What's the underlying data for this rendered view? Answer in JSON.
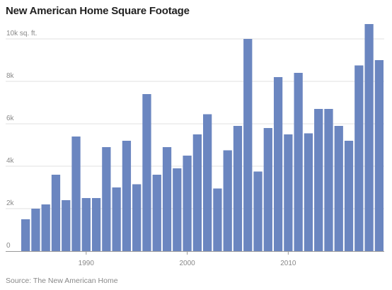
{
  "chart_data": {
    "type": "bar",
    "title": "New American Home Square Footage",
    "source": "Source: The New American Home",
    "ylabel": "",
    "xlabel": "",
    "ylim": [
      0,
      11000
    ],
    "y_ticks": [
      0,
      2000,
      4000,
      6000,
      8000,
      10000
    ],
    "y_tick_labels": [
      "0",
      "2k",
      "4k",
      "6k",
      "8k",
      "10k sq. ft."
    ],
    "x_ticks": [
      1990,
      2000,
      2010
    ],
    "x_tick_labels": [
      "1990",
      "2000",
      "2010"
    ],
    "grid": true,
    "bar_color": "#6b86c0",
    "categories": [
      1984,
      1985,
      1986,
      1987,
      1988,
      1989,
      1990,
      1991,
      1992,
      1993,
      1994,
      1995,
      1996,
      1997,
      1998,
      1999,
      2000,
      2001,
      2002,
      2003,
      2004,
      2005,
      2006,
      2007,
      2008,
      2009,
      2010,
      2011,
      2012,
      2013,
      2014,
      2015,
      2016,
      2017,
      2018,
      2019
    ],
    "values": [
      1500,
      2000,
      2200,
      3600,
      2400,
      5400,
      2500,
      2500,
      4900,
      3000,
      5200,
      3150,
      7400,
      3600,
      4900,
      3900,
      4500,
      5500,
      6450,
      2950,
      4750,
      5900,
      10000,
      3750,
      5800,
      8200,
      5500,
      8400,
      5550,
      6700,
      6700,
      5900,
      5200,
      8750,
      10700,
      9000
    ]
  }
}
